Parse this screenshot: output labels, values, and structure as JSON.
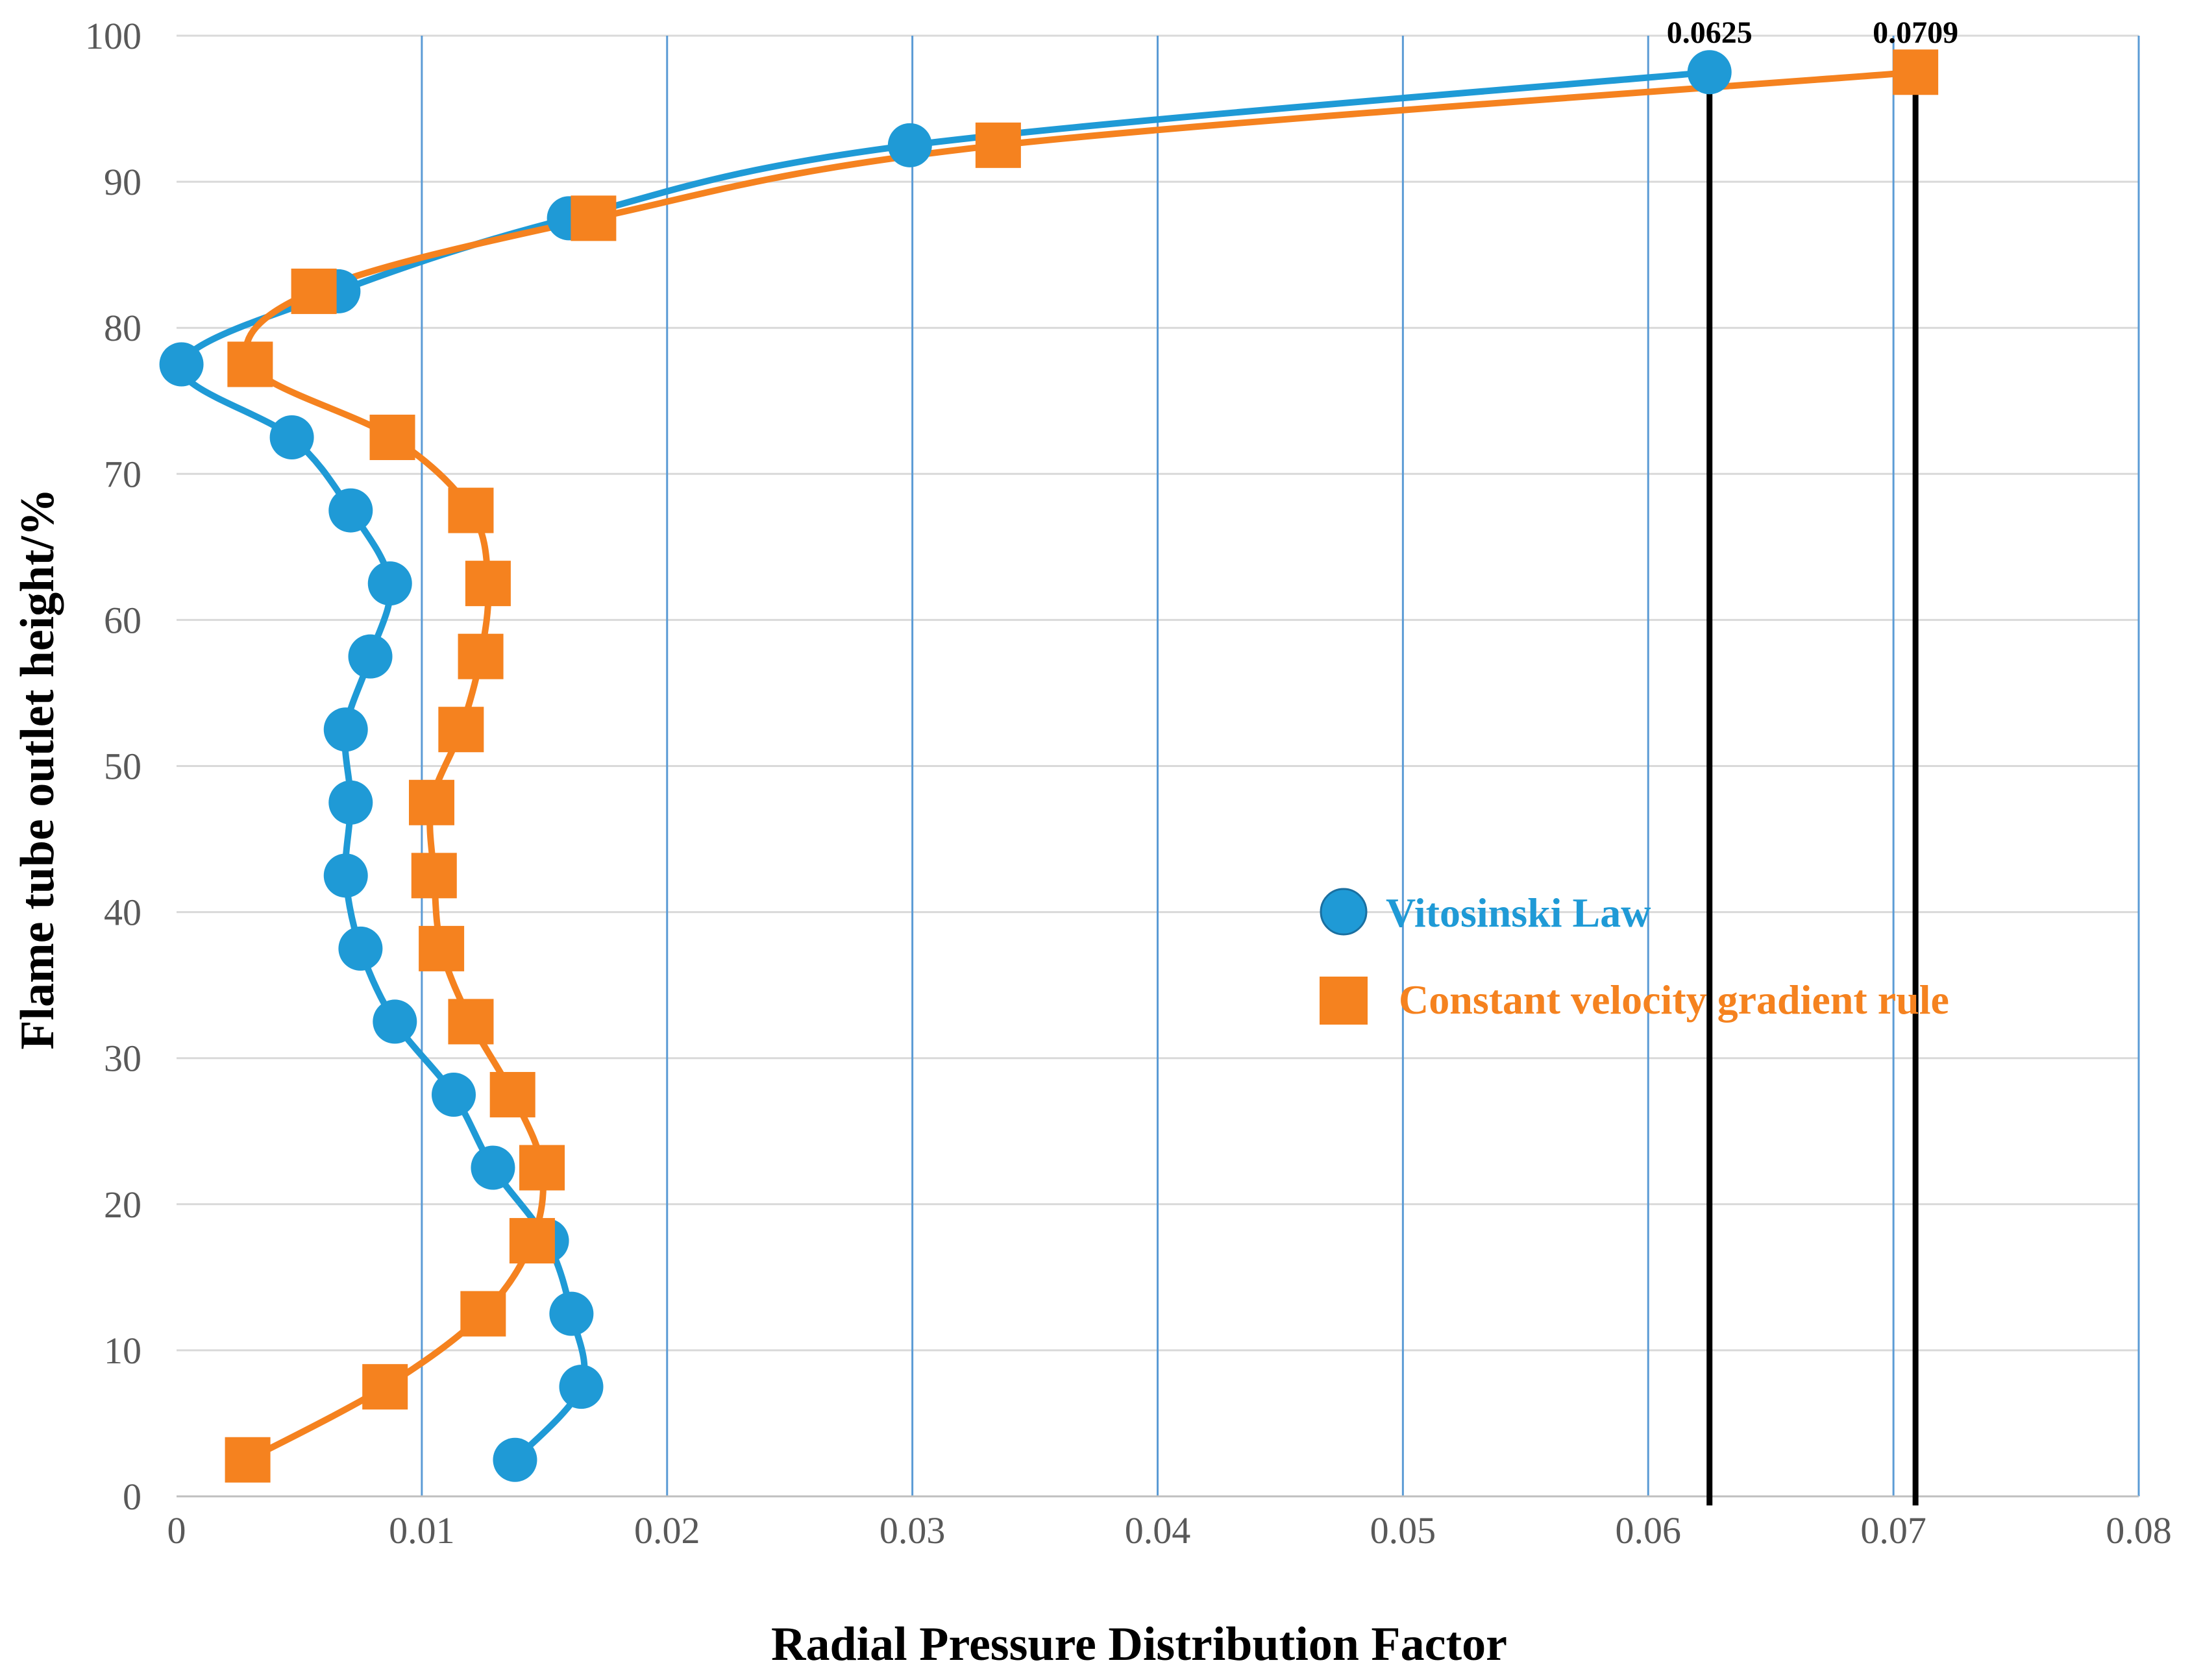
{
  "chart_data": {
    "type": "line",
    "title": "",
    "xlabel": "Radial Pressure Distribution Factor",
    "ylabel": "Flame tube outlet height/%",
    "xlim": [
      0,
      0.08
    ],
    "ylim": [
      0,
      100
    ],
    "x_ticks": [
      0,
      0.01,
      0.02,
      0.03,
      0.04,
      0.05,
      0.06,
      0.07,
      0.08
    ],
    "x_tick_labels": [
      "0",
      "0.01",
      "0.02",
      "0.03",
      "0.04",
      "0.05",
      "0.06",
      "0.07",
      "0.08"
    ],
    "y_ticks": [
      0,
      10,
      20,
      30,
      40,
      50,
      60,
      70,
      80,
      90,
      100
    ],
    "y_tick_labels": [
      "0",
      "10",
      "20",
      "30",
      "40",
      "50",
      "60",
      "70",
      "80",
      "90",
      "100"
    ],
    "grid": "both",
    "legend_position": "center-right",
    "series": [
      {
        "name": "Vitosinski Law",
        "marker": "circle",
        "color": "#1f9ad6",
        "points": [
          [
            0.0138,
            2.5
          ],
          [
            0.0165,
            7.5
          ],
          [
            0.0161,
            12.5
          ],
          [
            0.0151,
            17.5
          ],
          [
            0.0129,
            22.5
          ],
          [
            0.0113,
            27.5
          ],
          [
            0.0089,
            32.5
          ],
          [
            0.0075,
            37.5
          ],
          [
            0.0069,
            42.5
          ],
          [
            0.0071,
            47.5
          ],
          [
            0.0069,
            52.5
          ],
          [
            0.0079,
            57.5
          ],
          [
            0.0087,
            62.5
          ],
          [
            0.0071,
            67.5
          ],
          [
            0.0047,
            72.5
          ],
          [
            0.0002,
            77.5
          ],
          [
            0.0066,
            82.5
          ],
          [
            0.016,
            87.5
          ],
          [
            0.0299,
            92.5
          ],
          [
            0.0625,
            97.5
          ]
        ]
      },
      {
        "name": "Constant velocity gradient rule",
        "marker": "square",
        "color": "#f5821f",
        "points": [
          [
            0.0029,
            2.5
          ],
          [
            0.0085,
            7.5
          ],
          [
            0.0125,
            12.5
          ],
          [
            0.0145,
            17.5
          ],
          [
            0.0149,
            22.5
          ],
          [
            0.0137,
            27.5
          ],
          [
            0.012,
            32.5
          ],
          [
            0.0108,
            37.5
          ],
          [
            0.0105,
            42.5
          ],
          [
            0.0104,
            47.5
          ],
          [
            0.0116,
            52.5
          ],
          [
            0.0124,
            57.5
          ],
          [
            0.0127,
            62.5
          ],
          [
            0.012,
            67.5
          ],
          [
            0.0088,
            72.5
          ],
          [
            0.003,
            77.5
          ],
          [
            0.0056,
            82.5
          ],
          [
            0.017,
            87.5
          ],
          [
            0.0335,
            92.5
          ],
          [
            0.0709,
            97.5
          ]
        ]
      }
    ],
    "annotations": [
      {
        "label": "0.0625",
        "x": 0.0625,
        "y_from": 0,
        "y_to": 97.5
      },
      {
        "label": "0.0709",
        "x": 0.0709,
        "y_from": 0,
        "y_to": 97.5
      }
    ]
  }
}
